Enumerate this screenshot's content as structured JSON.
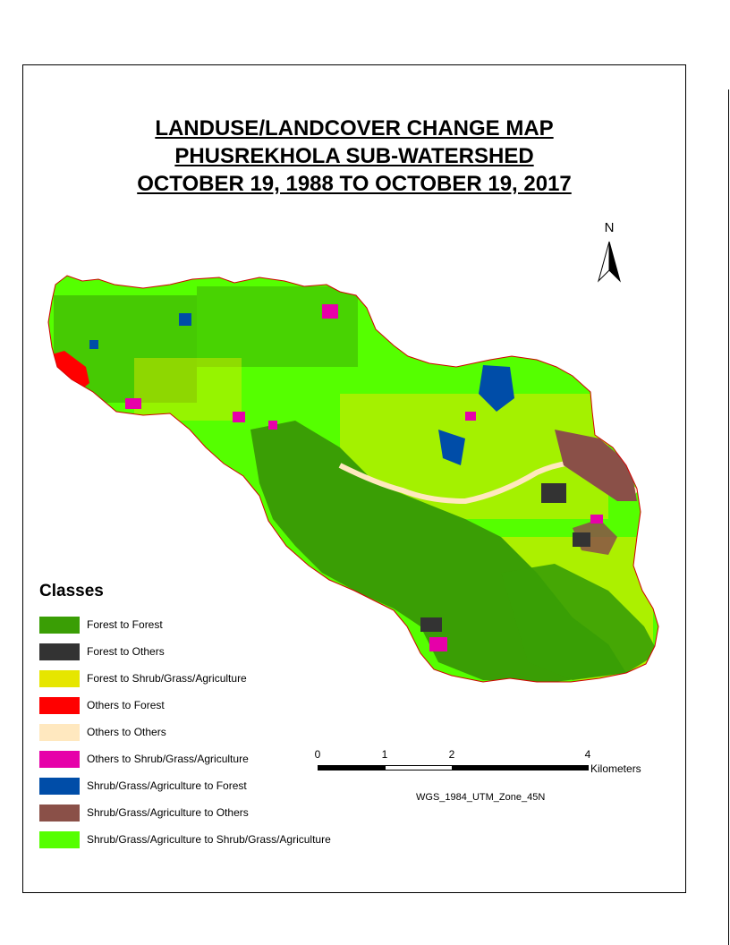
{
  "title": {
    "line1": "LANDUSE/LANDCOVER CHANGE MAP",
    "line2": "PHUSREKHOLA SUB-WATERSHED",
    "line3": "OCTOBER 19, 1988 TO OCTOBER 19, 2017"
  },
  "north_arrow": {
    "label": "N"
  },
  "legend": {
    "title": "Classes",
    "items": [
      {
        "label": "Forest to Forest",
        "color": "#3a9e05"
      },
      {
        "label": "Forest to Others",
        "color": "#333333"
      },
      {
        "label": "Forest to Shrub/Grass/Agriculture",
        "color": "#e6e600"
      },
      {
        "label": "Others to Forest",
        "color": "#ff0000"
      },
      {
        "label": "Others to Others",
        "color": "#ffe8bf"
      },
      {
        "label": "Others to Shrub/Grass/Agriculture",
        "color": "#e600a9"
      },
      {
        "label": "Shrub/Grass/Agriculture to Forest",
        "color": "#004da8"
      },
      {
        "label": "Shrub/Grass/Agriculture to Others",
        "color": "#8a5048"
      },
      {
        "label": "Shrub/Grass/Agriculture to Shrub/Grass/Agriculture",
        "color": "#55ff00"
      }
    ]
  },
  "scale_bar": {
    "ticks": [
      "0",
      "1",
      "2",
      "4"
    ],
    "units": "Kilometers"
  },
  "projection": "WGS_1984_UTM_Zone_45N"
}
